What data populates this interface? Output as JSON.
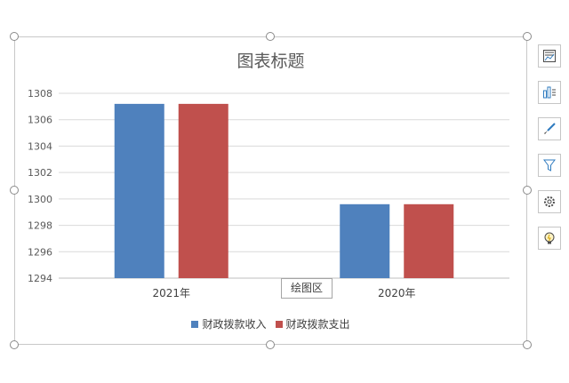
{
  "chart_data": {
    "type": "bar",
    "title": "图表标题",
    "categories": [
      "2021年",
      "2020年"
    ],
    "series": [
      {
        "name": "财政拨款收入",
        "values": [
          1307.2,
          1299.6
        ],
        "color": "#4f81bd"
      },
      {
        "name": "财政拨款支出",
        "values": [
          1307.2,
          1299.6
        ],
        "color": "#c0504d"
      }
    ],
    "ylim": [
      1294,
      1308
    ],
    "yticks": [
      1294,
      1296,
      1298,
      1300,
      1302,
      1304,
      1306,
      1308
    ],
    "grid": true,
    "legend_position": "bottom"
  },
  "tooltip": {
    "plot_area": "绘图区"
  },
  "side_toolbar": {
    "buttons": [
      "chart-elements-icon",
      "chart-style-icon",
      "brush-icon",
      "filter-icon",
      "settings-icon",
      "idea-icon"
    ]
  }
}
